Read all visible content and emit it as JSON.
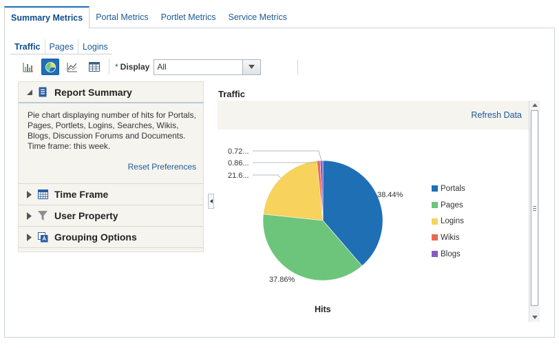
{
  "top_tabs": [
    {
      "label": "Summary Metrics",
      "active": true
    },
    {
      "label": "Portal Metrics"
    },
    {
      "label": "Portlet Metrics"
    },
    {
      "label": "Service Metrics"
    }
  ],
  "sub_tabs": [
    {
      "label": "Traffic",
      "active": true
    },
    {
      "label": "Pages"
    },
    {
      "label": "Logins"
    }
  ],
  "toolbar": {
    "buttons": [
      {
        "icon": "bar-chart-icon"
      },
      {
        "icon": "pie-chart-icon",
        "active": true
      },
      {
        "icon": "line-chart-icon"
      },
      {
        "icon": "table-icon"
      }
    ],
    "display_required": "*",
    "display_label": "Display",
    "display_value": "All"
  },
  "left_panel": {
    "report_summary": {
      "title": "Report Summary",
      "text": "Pie chart displaying number of hits for Portals, Pages, Portlets, Logins, Searches, Wikis, Blogs, Discussion Forums and Documents.\nTime frame: this week.",
      "reset_label": "Reset Preferences"
    },
    "sections": [
      {
        "title": "Time Frame",
        "icon": "calendar-icon"
      },
      {
        "title": "User Property",
        "icon": "filter-icon"
      },
      {
        "title": "Grouping Options",
        "icon": "grouping-icon"
      }
    ]
  },
  "chart_header": {
    "title": "Traffic",
    "refresh_label": "Refresh Data"
  },
  "chart_data": {
    "type": "pie",
    "xlabel": "Hits",
    "slices": [
      {
        "name": "Portals",
        "value": 38.44,
        "label": "38.44%",
        "color": "#1f6fb5"
      },
      {
        "name": "Pages",
        "value": 37.86,
        "label": "37.86%",
        "color": "#6cc57b"
      },
      {
        "name": "Logins",
        "value": 21.6,
        "label": "21.6...",
        "color": "#f7d25c"
      },
      {
        "name": "Wikis",
        "value": 0.86,
        "label": "0.86...",
        "color": "#ea6a4e"
      },
      {
        "name": "Blogs",
        "value": 0.72,
        "label": "0.72...",
        "color": "#8a5ac8"
      }
    ],
    "legend_position": "right"
  }
}
